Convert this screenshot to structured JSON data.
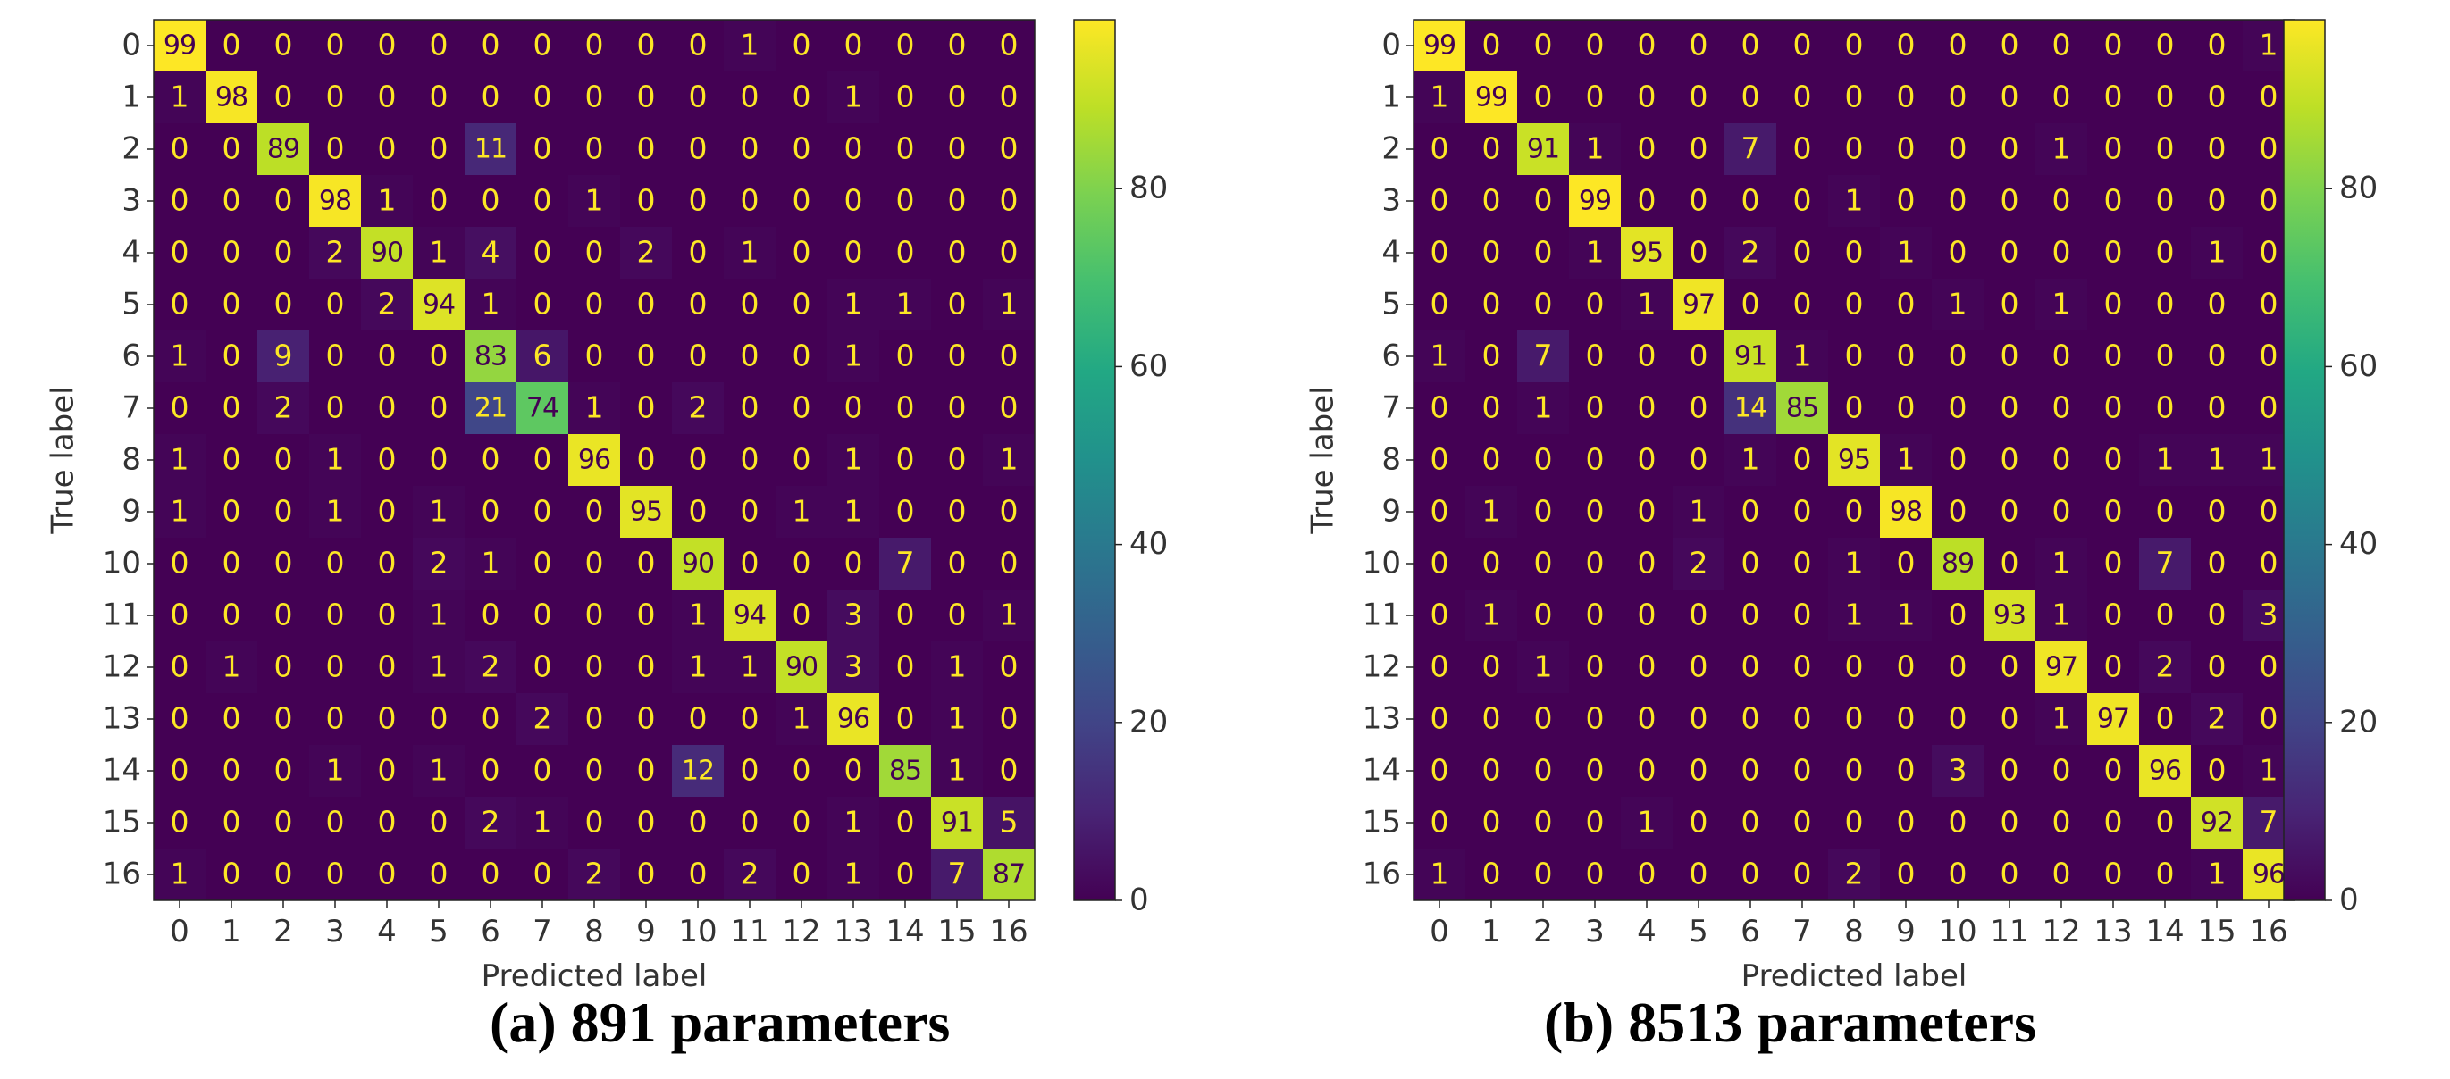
{
  "chart_data": [
    {
      "type": "heatmap",
      "title": "",
      "caption": "(a) 891 parameters",
      "xlabel": "Predicted label",
      "ylabel": "True label",
      "x_tick_labels": [
        "0",
        "1",
        "2",
        "3",
        "4",
        "5",
        "6",
        "7",
        "8",
        "9",
        "10",
        "11",
        "12",
        "13",
        "14",
        "15",
        "16"
      ],
      "y_tick_labels": [
        "0",
        "1",
        "2",
        "3",
        "4",
        "5",
        "6",
        "7",
        "8",
        "9",
        "10",
        "11",
        "12",
        "13",
        "14",
        "15",
        "16"
      ],
      "colorbar_ticks": [
        "0",
        "20",
        "40",
        "60",
        "80"
      ],
      "color_range": [
        0,
        99
      ],
      "colormap": "viridis",
      "matrix": [
        [
          99,
          0,
          0,
          0,
          0,
          0,
          0,
          0,
          0,
          0,
          0,
          1,
          0,
          0,
          0,
          0,
          0
        ],
        [
          1,
          98,
          0,
          0,
          0,
          0,
          0,
          0,
          0,
          0,
          0,
          0,
          0,
          1,
          0,
          0,
          0
        ],
        [
          0,
          0,
          89,
          0,
          0,
          0,
          11,
          0,
          0,
          0,
          0,
          0,
          0,
          0,
          0,
          0,
          0
        ],
        [
          0,
          0,
          0,
          98,
          1,
          0,
          0,
          0,
          1,
          0,
          0,
          0,
          0,
          0,
          0,
          0,
          0
        ],
        [
          0,
          0,
          0,
          2,
          90,
          1,
          4,
          0,
          0,
          2,
          0,
          1,
          0,
          0,
          0,
          0,
          0
        ],
        [
          0,
          0,
          0,
          0,
          2,
          94,
          1,
          0,
          0,
          0,
          0,
          0,
          0,
          1,
          1,
          0,
          1
        ],
        [
          1,
          0,
          9,
          0,
          0,
          0,
          83,
          6,
          0,
          0,
          0,
          0,
          0,
          1,
          0,
          0,
          0
        ],
        [
          0,
          0,
          2,
          0,
          0,
          0,
          21,
          74,
          1,
          0,
          2,
          0,
          0,
          0,
          0,
          0,
          0
        ],
        [
          1,
          0,
          0,
          1,
          0,
          0,
          0,
          0,
          96,
          0,
          0,
          0,
          0,
          1,
          0,
          0,
          1
        ],
        [
          1,
          0,
          0,
          1,
          0,
          1,
          0,
          0,
          0,
          95,
          0,
          0,
          1,
          1,
          0,
          0,
          0
        ],
        [
          0,
          0,
          0,
          0,
          0,
          2,
          1,
          0,
          0,
          0,
          90,
          0,
          0,
          0,
          7,
          0,
          0
        ],
        [
          0,
          0,
          0,
          0,
          0,
          1,
          0,
          0,
          0,
          0,
          1,
          94,
          0,
          3,
          0,
          0,
          1
        ],
        [
          0,
          1,
          0,
          0,
          0,
          1,
          2,
          0,
          0,
          0,
          1,
          1,
          90,
          3,
          0,
          1,
          0
        ],
        [
          0,
          0,
          0,
          0,
          0,
          0,
          0,
          2,
          0,
          0,
          0,
          0,
          1,
          96,
          0,
          1,
          0
        ],
        [
          0,
          0,
          0,
          1,
          0,
          1,
          0,
          0,
          0,
          0,
          12,
          0,
          0,
          0,
          85,
          1,
          0
        ],
        [
          0,
          0,
          0,
          0,
          0,
          0,
          2,
          1,
          0,
          0,
          0,
          0,
          0,
          1,
          0,
          91,
          5
        ],
        [
          1,
          0,
          0,
          0,
          0,
          0,
          0,
          0,
          2,
          0,
          0,
          2,
          0,
          1,
          0,
          7,
          87
        ]
      ]
    },
    {
      "type": "heatmap",
      "title": "",
      "caption": "(b) 8513 parameters",
      "xlabel": "Predicted label",
      "ylabel": "True label",
      "x_tick_labels": [
        "0",
        "1",
        "2",
        "3",
        "4",
        "5",
        "6",
        "7",
        "8",
        "9",
        "10",
        "11",
        "12",
        "13",
        "14",
        "15",
        "16"
      ],
      "y_tick_labels": [
        "0",
        "1",
        "2",
        "3",
        "4",
        "5",
        "6",
        "7",
        "8",
        "9",
        "10",
        "11",
        "12",
        "13",
        "14",
        "15",
        "16"
      ],
      "colorbar_ticks": [
        "0",
        "20",
        "40",
        "60",
        "80"
      ],
      "color_range": [
        0,
        99
      ],
      "colormap": "viridis",
      "matrix": [
        [
          99,
          0,
          0,
          0,
          0,
          0,
          0,
          0,
          0,
          0,
          0,
          0,
          0,
          0,
          0,
          0,
          1
        ],
        [
          1,
          99,
          0,
          0,
          0,
          0,
          0,
          0,
          0,
          0,
          0,
          0,
          0,
          0,
          0,
          0,
          0
        ],
        [
          0,
          0,
          91,
          1,
          0,
          0,
          7,
          0,
          0,
          0,
          0,
          0,
          1,
          0,
          0,
          0,
          0
        ],
        [
          0,
          0,
          0,
          99,
          0,
          0,
          0,
          0,
          1,
          0,
          0,
          0,
          0,
          0,
          0,
          0,
          0
        ],
        [
          0,
          0,
          0,
          1,
          95,
          0,
          2,
          0,
          0,
          1,
          0,
          0,
          0,
          0,
          0,
          1,
          0
        ],
        [
          0,
          0,
          0,
          0,
          1,
          97,
          0,
          0,
          0,
          0,
          1,
          0,
          1,
          0,
          0,
          0,
          0
        ],
        [
          1,
          0,
          7,
          0,
          0,
          0,
          91,
          1,
          0,
          0,
          0,
          0,
          0,
          0,
          0,
          0,
          0
        ],
        [
          0,
          0,
          1,
          0,
          0,
          0,
          14,
          85,
          0,
          0,
          0,
          0,
          0,
          0,
          0,
          0,
          0
        ],
        [
          0,
          0,
          0,
          0,
          0,
          0,
          1,
          0,
          95,
          1,
          0,
          0,
          0,
          0,
          1,
          1,
          1
        ],
        [
          0,
          1,
          0,
          0,
          0,
          1,
          0,
          0,
          0,
          98,
          0,
          0,
          0,
          0,
          0,
          0,
          0
        ],
        [
          0,
          0,
          0,
          0,
          0,
          2,
          0,
          0,
          1,
          0,
          89,
          0,
          1,
          0,
          7,
          0,
          0
        ],
        [
          0,
          1,
          0,
          0,
          0,
          0,
          0,
          0,
          1,
          1,
          0,
          93,
          1,
          0,
          0,
          0,
          3
        ],
        [
          0,
          0,
          1,
          0,
          0,
          0,
          0,
          0,
          0,
          0,
          0,
          0,
          97,
          0,
          2,
          0,
          0
        ],
        [
          0,
          0,
          0,
          0,
          0,
          0,
          0,
          0,
          0,
          0,
          0,
          0,
          1,
          97,
          0,
          2,
          0
        ],
        [
          0,
          0,
          0,
          0,
          0,
          0,
          0,
          0,
          0,
          0,
          3,
          0,
          0,
          0,
          96,
          0,
          1
        ],
        [
          0,
          0,
          0,
          0,
          1,
          0,
          0,
          0,
          0,
          0,
          0,
          0,
          0,
          0,
          0,
          92,
          7
        ],
        [
          1,
          0,
          0,
          0,
          0,
          0,
          0,
          0,
          2,
          0,
          0,
          0,
          0,
          0,
          0,
          1,
          96
        ]
      ]
    }
  ]
}
